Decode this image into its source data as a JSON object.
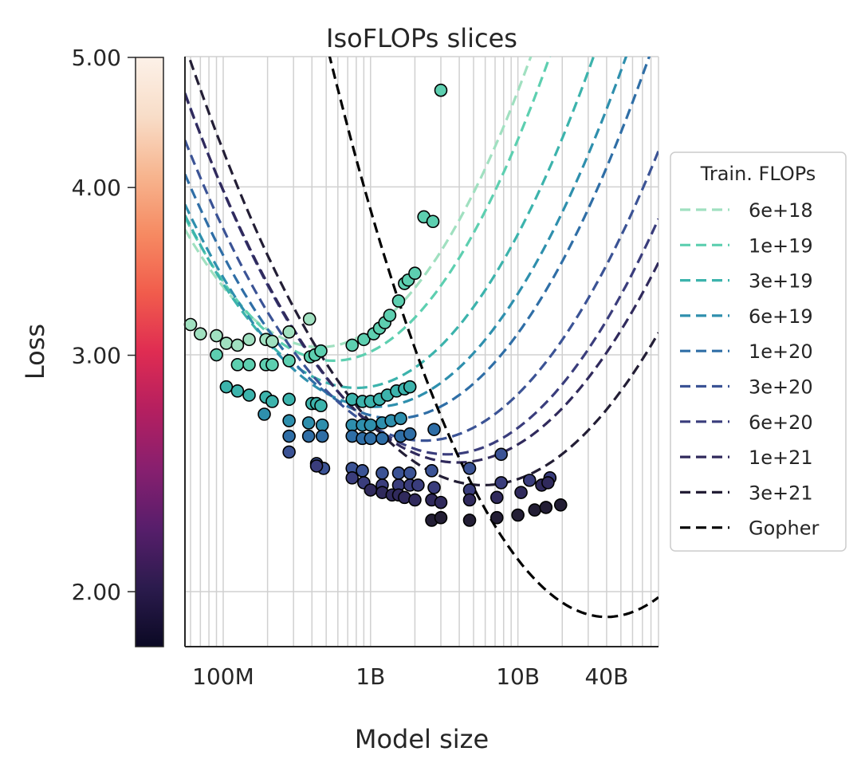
{
  "chart_data": {
    "type": "scatter",
    "title": "IsoFLOPs slices",
    "xlabel": "Model size",
    "ylabel": "Loss",
    "x_scale": "log",
    "y_scale": "log",
    "xlim": [
      55000000,
      90000000000
    ],
    "ylim": [
      1.82,
      5.0
    ],
    "x_ticks": [
      {
        "value": 100000000,
        "label": "100M"
      },
      {
        "value": 1000000000,
        "label": "1B"
      },
      {
        "value": 10000000000,
        "label": "10B"
      },
      {
        "value": 40000000000,
        "label": "40B"
      }
    ],
    "y_ticks": [
      {
        "value": 2.0,
        "label": "2.00"
      },
      {
        "value": 3.0,
        "label": "3.00"
      },
      {
        "value": 4.0,
        "label": "4.00"
      },
      {
        "value": 5.0,
        "label": "5.00"
      }
    ],
    "grid": true,
    "legend": {
      "title": "Train. FLOPs",
      "position": "right"
    },
    "colorbar": {
      "range": [
        1.82,
        5.0
      ],
      "colors": [
        "#0b0924",
        "#2b1b4d",
        "#571e6b",
        "#871f6f",
        "#b41f60",
        "#df2c52",
        "#f15c4c",
        "#f68a62",
        "#f7b58f",
        "#f8ddc8",
        "#fcf1e8"
      ],
      "ticks": [
        {
          "value": 2.0,
          "label": "2.00"
        },
        {
          "value": 3.0,
          "label": "3.00"
        },
        {
          "value": 4.0,
          "label": "4.00"
        },
        {
          "value": 5.0,
          "label": "5.00"
        }
      ]
    },
    "series": [
      {
        "name": "6e+18",
        "color": "#a0e0c0",
        "fit": {
          "x_opt": 450000000,
          "loss_min": 3.04,
          "k": 0.105
        },
        "points": [
          [
            60000000,
            3.16
          ],
          [
            70000000,
            3.11
          ],
          [
            90000000,
            3.1
          ],
          [
            105000000,
            3.06
          ],
          [
            125000000,
            3.05
          ],
          [
            150000000,
            3.08
          ],
          [
            195000000,
            3.08
          ],
          [
            215000000,
            3.07
          ],
          [
            280000000,
            3.12
          ],
          [
            385000000,
            3.19
          ]
        ]
      },
      {
        "name": "1e+19",
        "color": "#5dcfb0",
        "fit": {
          "x_opt": 560000000,
          "loss_min": 2.97,
          "k": 0.105
        },
        "points": [
          [
            90000000,
            3.0
          ],
          [
            125000000,
            2.95
          ],
          [
            150000000,
            2.95
          ],
          [
            195000000,
            2.95
          ],
          [
            215000000,
            2.95
          ],
          [
            280000000,
            2.97
          ],
          [
            390000000,
            2.99
          ],
          [
            420000000,
            3.0
          ],
          [
            460000000,
            3.02
          ],
          [
            750000000,
            3.05
          ],
          [
            900000000,
            3.08
          ],
          [
            1050000000,
            3.11
          ],
          [
            1150000000,
            3.14
          ],
          [
            1250000000,
            3.17
          ],
          [
            1350000000,
            3.21
          ],
          [
            1550000000,
            3.29
          ],
          [
            1700000000,
            3.39
          ],
          [
            1800000000,
            3.41
          ],
          [
            2000000000,
            3.45
          ],
          [
            2300000000,
            3.8
          ],
          [
            2650000000,
            3.77
          ],
          [
            3000000000,
            4.72
          ]
        ]
      },
      {
        "name": "3e+19",
        "color": "#3cb3ac",
        "fit": {
          "x_opt": 800000000,
          "loss_min": 2.835,
          "k": 0.095
        },
        "points": [
          [
            105000000,
            2.84
          ],
          [
            125000000,
            2.82
          ],
          [
            150000000,
            2.8
          ],
          [
            195000000,
            2.79
          ],
          [
            215000000,
            2.77
          ],
          [
            280000000,
            2.78
          ],
          [
            400000000,
            2.76
          ],
          [
            430000000,
            2.76
          ],
          [
            460000000,
            2.75
          ],
          [
            750000000,
            2.78
          ],
          [
            880000000,
            2.77
          ],
          [
            1000000000,
            2.77
          ],
          [
            1150000000,
            2.78
          ],
          [
            1300000000,
            2.8
          ],
          [
            1500000000,
            2.82
          ],
          [
            1700000000,
            2.83
          ],
          [
            1850000000,
            2.84
          ]
        ]
      },
      {
        "name": "6e+19",
        "color": "#2e8fad",
        "fit": {
          "x_opt": 1080000000,
          "loss_min": 2.745,
          "k": 0.09
        },
        "points": [
          [
            190000000,
            2.71
          ],
          [
            280000000,
            2.68
          ],
          [
            380000000,
            2.67
          ],
          [
            470000000,
            2.66
          ],
          [
            750000000,
            2.66
          ],
          [
            880000000,
            2.66
          ],
          [
            1000000000,
            2.66
          ],
          [
            1200000000,
            2.67
          ],
          [
            1380000000,
            2.68
          ],
          [
            1600000000,
            2.69
          ]
        ]
      },
      {
        "name": "1e+20",
        "color": "#2f6ea6",
        "fit": {
          "x_opt": 1450000000,
          "loss_min": 2.69,
          "k": 0.09
        },
        "points": [
          [
            280000000,
            2.61
          ],
          [
            380000000,
            2.61
          ],
          [
            470000000,
            2.61
          ],
          [
            750000000,
            2.61
          ],
          [
            880000000,
            2.6
          ],
          [
            1000000000,
            2.6
          ],
          [
            1200000000,
            2.6
          ],
          [
            1600000000,
            2.61
          ],
          [
            1850000000,
            2.62
          ],
          [
            2700000000,
            2.64
          ]
        ]
      },
      {
        "name": "3e+20",
        "color": "#3b5395",
        "fit": {
          "x_opt": 2300000000,
          "loss_min": 2.59,
          "k": 0.085
        },
        "points": [
          [
            280000000,
            2.54
          ],
          [
            430000000,
            2.49
          ],
          [
            480000000,
            2.47
          ],
          [
            750000000,
            2.47
          ],
          [
            880000000,
            2.46
          ],
          [
            1200000000,
            2.45
          ],
          [
            1550000000,
            2.45
          ],
          [
            1850000000,
            2.45
          ],
          [
            2600000000,
            2.46
          ],
          [
            4700000000,
            2.47
          ],
          [
            7700000000,
            2.53
          ]
        ]
      },
      {
        "name": "6e+20",
        "color": "#3a3d7c",
        "fit": {
          "x_opt": 3300000000,
          "loss_min": 2.53,
          "k": 0.085
        },
        "points": [
          [
            430000000,
            2.48
          ],
          [
            750000000,
            2.43
          ],
          [
            900000000,
            2.41
          ],
          [
            1200000000,
            2.4
          ],
          [
            1550000000,
            2.4
          ],
          [
            1850000000,
            2.4
          ],
          [
            2100000000,
            2.4
          ],
          [
            2700000000,
            2.39
          ],
          [
            4700000000,
            2.38
          ],
          [
            7700000000,
            2.41
          ],
          [
            12000000000,
            2.42
          ],
          [
            16500000000,
            2.43
          ]
        ]
      },
      {
        "name": "1e+21",
        "color": "#302a5c",
        "fit": {
          "x_opt": 3900000000,
          "loss_min": 2.495,
          "k": 0.08
        },
        "points": [
          [
            1000000000,
            2.38
          ],
          [
            1200000000,
            2.37
          ],
          [
            1400000000,
            2.36
          ],
          [
            1550000000,
            2.36
          ],
          [
            1700000000,
            2.35
          ],
          [
            2000000000,
            2.34
          ],
          [
            2600000000,
            2.34
          ],
          [
            3000000000,
            2.33
          ],
          [
            4700000000,
            2.34
          ],
          [
            7200000000,
            2.35
          ],
          [
            10500000000,
            2.37
          ],
          [
            14500000000,
            2.4
          ],
          [
            16000000000,
            2.41
          ]
        ]
      },
      {
        "name": "3e+21",
        "color": "#231e35",
        "fit": {
          "x_opt": 5800000000,
          "loss_min": 2.4,
          "k": 0.08
        },
        "points": [
          [
            2600000000,
            2.26
          ],
          [
            3000000000,
            2.27
          ],
          [
            4700000000,
            2.26
          ],
          [
            7200000000,
            2.27
          ],
          [
            10000000000,
            2.28
          ],
          [
            13000000000,
            2.3
          ],
          [
            15500000000,
            2.31
          ],
          [
            19500000000,
            2.32
          ]
        ]
      },
      {
        "name": "Gopher",
        "color": "#000000",
        "fit": {
          "x_opt": 40000000000,
          "loss_min": 1.915,
          "k": 0.118
        },
        "points": []
      }
    ]
  }
}
